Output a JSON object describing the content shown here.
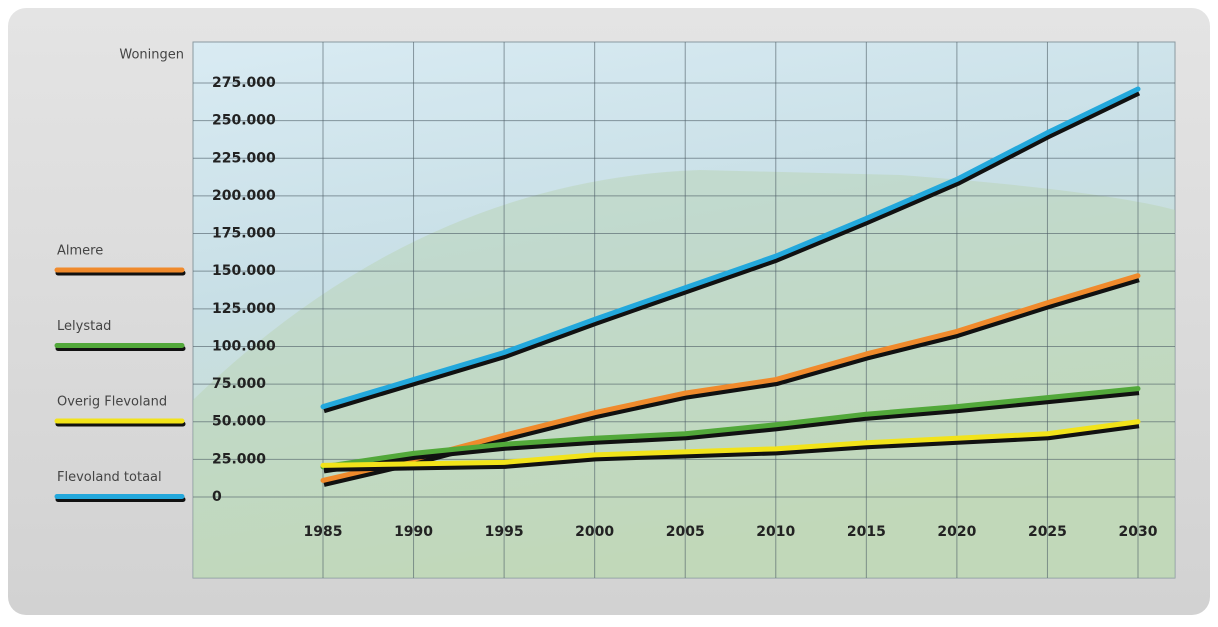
{
  "chart_data": {
    "type": "line",
    "y_label": "Woningen",
    "x": [
      1985,
      1990,
      1995,
      2000,
      2005,
      2010,
      2015,
      2020,
      2025,
      2030
    ],
    "xlim": [
      1985,
      2030
    ],
    "xticks": [
      1985,
      1990,
      1995,
      2000,
      2005,
      2010,
      2015,
      2020,
      2025,
      2030
    ],
    "ylim": [
      0,
      275000
    ],
    "yticks": [
      0,
      {
        "value": 25000,
        "label": "25.000"
      },
      {
        "value": 50000,
        "label": "50.000"
      },
      {
        "value": 75000,
        "label": "75.000"
      },
      {
        "value": 100000,
        "label": "100.000"
      },
      {
        "value": 125000,
        "label": "125.000"
      },
      {
        "value": 150000,
        "label": "150.000"
      },
      {
        "value": 175000,
        "label": "175.000"
      },
      {
        "value": 200000,
        "label": "200.000"
      },
      {
        "value": 225000,
        "label": "225.000"
      },
      {
        "value": 250000,
        "label": "250.000"
      },
      {
        "value": 275000,
        "label": "275.000"
      }
    ],
    "grid": true,
    "series": [
      {
        "name": "Almere",
        "color": "#f08a2c",
        "values": [
          11000,
          25000,
          41000,
          56000,
          69000,
          78000,
          95000,
          110000,
          129000,
          147000
        ]
      },
      {
        "name": "Lelystad",
        "color": "#52a83a",
        "values": [
          20000,
          29000,
          35000,
          39000,
          42000,
          48000,
          55000,
          60000,
          66000,
          72000
        ]
      },
      {
        "name": "Overig Flevoland",
        "color": "#f2e31a",
        "values": [
          21000,
          22000,
          23000,
          28000,
          30000,
          32000,
          36000,
          39000,
          42000,
          50000
        ]
      },
      {
        "name": "Flevoland totaal",
        "color": "#23a8dc",
        "values": [
          60000,
          78000,
          96000,
          118000,
          139000,
          160000,
          185000,
          211000,
          242000,
          271000
        ]
      }
    ]
  }
}
